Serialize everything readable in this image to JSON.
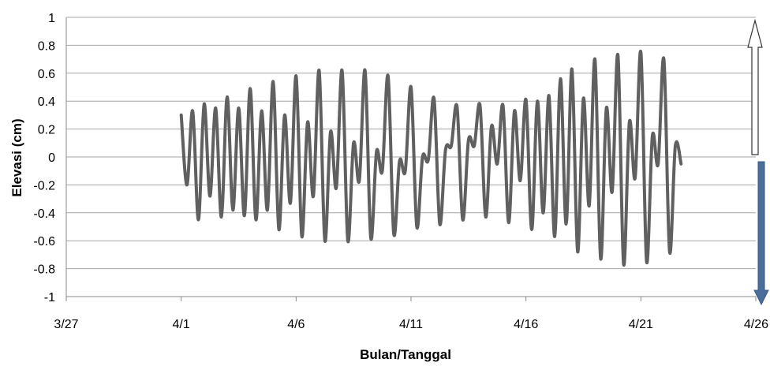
{
  "chart_data": {
    "type": "line",
    "xlabel": "Bulan/Tanggal",
    "ylabel": "Elevasi  (cm)",
    "x_axis": {
      "type": "date",
      "min": "3/27",
      "max": "4/26",
      "tick_labels": [
        "3/27",
        "4/1",
        "4/6",
        "4/11",
        "4/16",
        "4/21",
        "4/26"
      ]
    },
    "y_axis": {
      "min": -1,
      "max": 1,
      "tick_labels": [
        "1",
        "0.8",
        "0.6",
        "0.4",
        "0.2",
        "0",
        "-0.2",
        "-0.4",
        "-0.6",
        "-0.8",
        "-1"
      ]
    },
    "grid": true,
    "legend": "none",
    "series": [
      {
        "color": "#606060",
        "points": [
          [
            "4/1 00:00",
            0.3
          ],
          [
            "4/1 06:00",
            -0.2
          ],
          [
            "4/1 12:00",
            0.33
          ],
          [
            "4/1 18:00",
            -0.45
          ],
          [
            "4/2 00:00",
            0.38
          ],
          [
            "4/2 06:00",
            -0.28
          ],
          [
            "4/2 12:00",
            0.35
          ],
          [
            "4/2 18:00",
            -0.43
          ],
          [
            "4/3 00:00",
            0.43
          ],
          [
            "4/3 06:00",
            -0.38
          ],
          [
            "4/3 12:00",
            0.35
          ],
          [
            "4/3 18:00",
            -0.42
          ],
          [
            "4/4 00:00",
            0.49
          ],
          [
            "4/4 06:00",
            -0.45
          ],
          [
            "4/4 12:00",
            0.33
          ],
          [
            "4/4 18:00",
            -0.38
          ],
          [
            "4/5 00:00",
            0.54
          ],
          [
            "4/5 06:00",
            -0.52
          ],
          [
            "4/5 12:00",
            0.3
          ],
          [
            "4/5 18:00",
            -0.33
          ],
          [
            "4/6 00:00",
            0.58
          ],
          [
            "4/6 06:00",
            -0.57
          ],
          [
            "4/6 12:00",
            0.25
          ],
          [
            "4/6 18:00",
            -0.28
          ],
          [
            "4/7 00:00",
            0.62
          ],
          [
            "4/7 06:00",
            -0.6
          ],
          [
            "4/7 12:00",
            0.18
          ],
          [
            "4/7 18:00",
            -0.22
          ],
          [
            "4/8 00:00",
            0.62
          ],
          [
            "4/8 06:00",
            -0.6
          ],
          [
            "4/8 12:00",
            0.1
          ],
          [
            "4/8 18:00",
            -0.17
          ],
          [
            "4/9 00:00",
            0.62
          ],
          [
            "4/9 06:00",
            -0.58
          ],
          [
            "4/9 12:00",
            0.04
          ],
          [
            "4/9 18:00",
            -0.1
          ],
          [
            "4/10 00:00",
            0.58
          ],
          [
            "4/10 06:00",
            -0.55
          ],
          [
            "4/10 12:00",
            -0.03
          ],
          [
            "4/10 18:00",
            -0.1
          ],
          [
            "4/11 00:00",
            0.5
          ],
          [
            "4/11 06:00",
            -0.5
          ],
          [
            "4/11 12:00",
            0.0
          ],
          [
            "4/11 18:00",
            -0.02
          ],
          [
            "4/12 00:00",
            0.42
          ],
          [
            "4/12 06:00",
            -0.48
          ],
          [
            "4/12 12:00",
            0.05
          ],
          [
            "4/12 18:00",
            0.08
          ],
          [
            "4/13 00:00",
            0.36
          ],
          [
            "4/13 06:00",
            -0.45
          ],
          [
            "4/13 12:00",
            0.12
          ],
          [
            "4/13 18:00",
            0.08
          ],
          [
            "4/14 00:00",
            0.37
          ],
          [
            "4/14 06:00",
            -0.43
          ],
          [
            "4/14 12:00",
            0.22
          ],
          [
            "4/14 18:00",
            -0.05
          ],
          [
            "4/15 00:00",
            0.37
          ],
          [
            "4/15 06:00",
            -0.47
          ],
          [
            "4/15 12:00",
            0.33
          ],
          [
            "4/15 18:00",
            -0.17
          ],
          [
            "4/16 00:00",
            0.41
          ],
          [
            "4/16 06:00",
            -0.52
          ],
          [
            "4/16 12:00",
            0.4
          ],
          [
            "4/16 18:00",
            -0.4
          ],
          [
            "4/17 00:00",
            0.44
          ],
          [
            "4/17 06:00",
            -0.57
          ],
          [
            "4/17 12:00",
            0.56
          ],
          [
            "4/17 18:00",
            -0.48
          ],
          [
            "4/18 00:00",
            0.63
          ],
          [
            "4/18 06:00",
            -0.68
          ],
          [
            "4/18 12:00",
            0.42
          ],
          [
            "4/18 18:00",
            -0.35
          ],
          [
            "4/19 00:00",
            0.7
          ],
          [
            "4/19 06:00",
            -0.73
          ],
          [
            "4/19 12:00",
            0.35
          ],
          [
            "4/19 18:00",
            -0.25
          ],
          [
            "4/20 00:00",
            0.73
          ],
          [
            "4/20 06:00",
            -0.77
          ],
          [
            "4/20 12:00",
            0.25
          ],
          [
            "4/20 18:00",
            -0.15
          ],
          [
            "4/21 00:00",
            0.75
          ],
          [
            "4/21 06:00",
            -0.75
          ],
          [
            "4/21 12:00",
            0.15
          ],
          [
            "4/21 18:00",
            -0.05
          ],
          [
            "4/22 00:00",
            0.7
          ],
          [
            "4/22 06:00",
            -0.68
          ],
          [
            "4/22 12:00",
            0.08
          ],
          [
            "4/22 18:00",
            -0.05
          ]
        ]
      }
    ]
  },
  "side_arrows": {
    "up_fill": "#ffffff",
    "up_stroke": "#333333",
    "down_fill": "#4a6d9a",
    "down_stroke": "#3a5a86"
  }
}
